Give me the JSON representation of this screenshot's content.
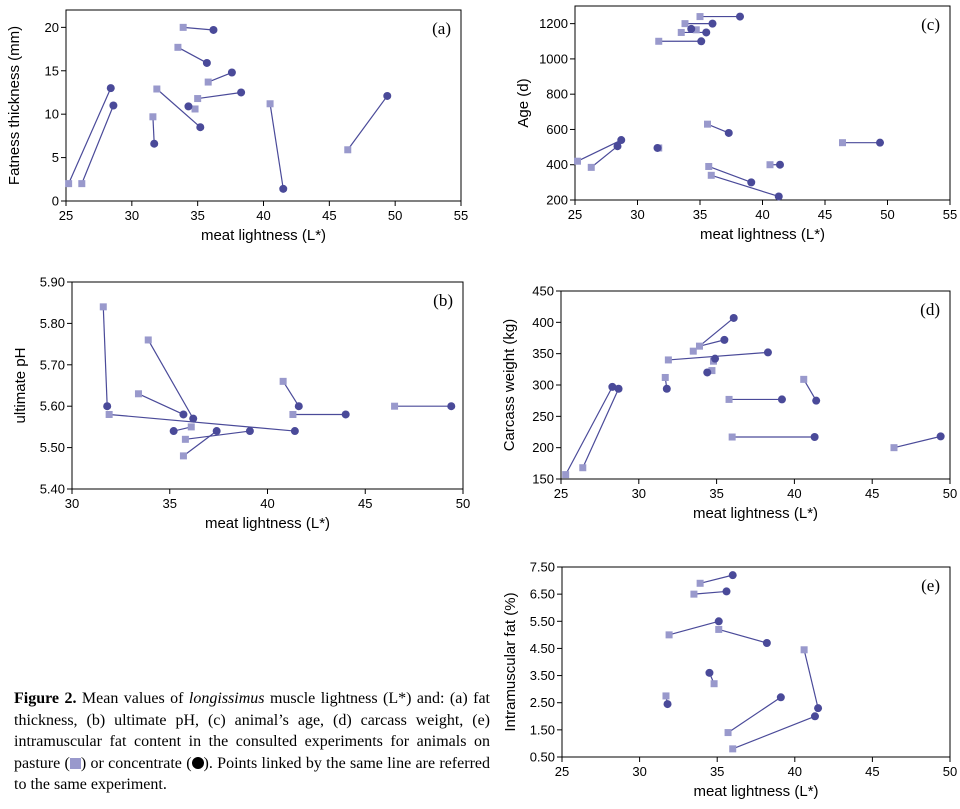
{
  "colors": {
    "pasture": "#9999cc",
    "concentrate": "#4a4a99",
    "line_pasture": "#8888c4",
    "line_concentrate": "#4a4a99"
  },
  "chart_data": [
    {
      "id": "a",
      "type": "scatter",
      "panel_label": "(a)",
      "xlabel": "meat lightness (L*)",
      "ylabel": "Fatness thickness (mm)",
      "xlim": [
        25,
        55
      ],
      "ylim": [
        0,
        22
      ],
      "xticks": [
        25,
        30,
        35,
        40,
        45,
        50,
        55
      ],
      "yticks": [
        0,
        5,
        10,
        15,
        20
      ],
      "tick_labels_x": [
        "25",
        "30",
        "35",
        "40",
        "45",
        "50",
        "55"
      ],
      "tick_labels_y": [
        "0",
        "5",
        "10",
        "15",
        "20"
      ],
      "pairs": [
        {
          "pasture": [
            25.2,
            2.0
          ],
          "concentrate": [
            28.4,
            13.0
          ]
        },
        {
          "pasture": [
            26.2,
            2.0
          ],
          "concentrate": [
            28.6,
            11.0
          ]
        },
        {
          "pasture": [
            31.6,
            9.7
          ],
          "concentrate": [
            31.7,
            6.6
          ]
        },
        {
          "pasture": [
            33.9,
            20.0
          ],
          "concentrate": [
            36.2,
            19.7
          ]
        },
        {
          "pasture": [
            33.5,
            17.7
          ],
          "concentrate": [
            35.7,
            15.9
          ]
        },
        {
          "pasture": [
            35.8,
            13.7
          ],
          "concentrate": [
            37.6,
            14.8
          ]
        },
        {
          "pasture": [
            35.0,
            11.8
          ],
          "concentrate": [
            38.3,
            12.5
          ]
        },
        {
          "pasture": [
            34.8,
            10.6
          ],
          "concentrate": [
            34.3,
            10.9
          ]
        },
        {
          "pasture": [
            31.9,
            12.9
          ],
          "concentrate": [
            35.2,
            8.5
          ]
        },
        {
          "pasture": [
            40.5,
            11.2
          ],
          "concentrate": [
            41.5,
            1.4
          ]
        },
        {
          "pasture": [
            46.4,
            5.9
          ],
          "concentrate": [
            49.4,
            12.1
          ]
        }
      ]
    },
    {
      "id": "b",
      "type": "scatter",
      "panel_label": "(b)",
      "xlabel": "meat lightness (L*)",
      "ylabel": "ultimate pH",
      "xlim": [
        30,
        50
      ],
      "ylim": [
        5.4,
        5.9
      ],
      "xticks": [
        30,
        35,
        40,
        45,
        50
      ],
      "yticks": [
        5.4,
        5.5,
        5.6,
        5.7,
        5.8,
        5.9
      ],
      "tick_labels_x": [
        "30",
        "35",
        "40",
        "45",
        "50"
      ],
      "tick_labels_y": [
        "5.40",
        "5.50",
        "5.60",
        "5.70",
        "5.80",
        "5.90"
      ],
      "pairs": [
        {
          "pasture": [
            31.6,
            5.84
          ],
          "concentrate": [
            31.8,
            5.6
          ]
        },
        {
          "pasture": [
            31.9,
            5.58
          ],
          "concentrate": [
            41.4,
            5.54
          ]
        },
        {
          "pasture": [
            33.9,
            5.76
          ],
          "concentrate": [
            36.2,
            5.57
          ]
        },
        {
          "pasture": [
            33.4,
            5.63
          ],
          "concentrate": [
            35.7,
            5.58
          ]
        },
        {
          "pasture": [
            36.1,
            5.55
          ],
          "concentrate": [
            35.2,
            5.54
          ]
        },
        {
          "pasture": [
            35.8,
            5.52
          ],
          "concentrate": [
            39.1,
            5.54
          ]
        },
        {
          "pasture": [
            35.7,
            5.48
          ],
          "concentrate": [
            37.4,
            5.54
          ]
        },
        {
          "pasture": [
            40.8,
            5.66
          ],
          "concentrate": [
            41.6,
            5.6
          ]
        },
        {
          "pasture": [
            41.3,
            5.58
          ],
          "concentrate": [
            44.0,
            5.58
          ]
        },
        {
          "pasture": [
            46.5,
            5.6
          ],
          "concentrate": [
            49.4,
            5.6
          ]
        }
      ]
    },
    {
      "id": "c",
      "type": "scatter",
      "panel_label": "(c)",
      "xlabel": "meat lightness (L*)",
      "ylabel": "Age (d)",
      "xlim": [
        25,
        55
      ],
      "ylim": [
        200,
        1300
      ],
      "xticks": [
        25,
        30,
        35,
        40,
        45,
        50,
        55
      ],
      "yticks": [
        200,
        400,
        600,
        800,
        1000,
        1200
      ],
      "tick_labels_x": [
        "25",
        "30",
        "35",
        "40",
        "45",
        "50",
        "55"
      ],
      "tick_labels_y": [
        "200",
        "400",
        "600",
        "800",
        "1000",
        "1200"
      ],
      "pairs": [
        {
          "pasture": [
            25.2,
            420
          ],
          "concentrate": [
            28.7,
            540
          ]
        },
        {
          "pasture": [
            26.3,
            385
          ],
          "concentrate": [
            28.4,
            505
          ]
        },
        {
          "pasture": [
            31.7,
            495
          ],
          "concentrate": [
            31.6,
            495
          ]
        },
        {
          "pasture": [
            35.0,
            1240
          ],
          "concentrate": [
            38.2,
            1240
          ]
        },
        {
          "pasture": [
            33.8,
            1200
          ],
          "concentrate": [
            36.0,
            1200
          ]
        },
        {
          "pasture": [
            33.5,
            1150
          ],
          "concentrate": [
            35.5,
            1150
          ]
        },
        {
          "pasture": [
            34.7,
            1165
          ],
          "concentrate": [
            34.3,
            1170
          ]
        },
        {
          "pasture": [
            31.7,
            1100
          ],
          "concentrate": [
            35.1,
            1100
          ]
        },
        {
          "pasture": [
            35.6,
            630
          ],
          "concentrate": [
            37.3,
            580
          ]
        },
        {
          "pasture": [
            35.7,
            390
          ],
          "concentrate": [
            39.1,
            300
          ]
        },
        {
          "pasture": [
            35.9,
            340
          ],
          "concentrate": [
            41.3,
            220
          ]
        },
        {
          "pasture": [
            40.6,
            400
          ],
          "concentrate": [
            41.4,
            400
          ]
        },
        {
          "pasture": [
            46.4,
            525
          ],
          "concentrate": [
            49.4,
            525
          ]
        }
      ]
    },
    {
      "id": "d",
      "type": "scatter",
      "panel_label": "(d)",
      "xlabel": "meat lightness (L*)",
      "ylabel": "Carcass weight (kg)",
      "xlim": [
        25,
        50
      ],
      "ylim": [
        150,
        450
      ],
      "xticks": [
        25,
        30,
        35,
        40,
        45,
        50
      ],
      "yticks": [
        150,
        200,
        250,
        300,
        350,
        400,
        450
      ],
      "tick_labels_x": [
        "25",
        "30",
        "35",
        "40",
        "45",
        "50"
      ],
      "tick_labels_y": [
        "150",
        "200",
        "250",
        "300",
        "350",
        "400",
        "450"
      ],
      "pairs": [
        {
          "pasture": [
            25.3,
            157
          ],
          "concentrate": [
            28.3,
            297
          ]
        },
        {
          "pasture": [
            26.4,
            168
          ],
          "concentrate": [
            28.7,
            294
          ]
        },
        {
          "pasture": [
            31.7,
            312
          ],
          "concentrate": [
            31.8,
            294
          ]
        },
        {
          "pasture": [
            31.9,
            340
          ],
          "concentrate": [
            38.3,
            352
          ]
        },
        {
          "pasture": [
            33.9,
            362
          ],
          "concentrate": [
            35.5,
            372
          ]
        },
        {
          "pasture": [
            33.5,
            354
          ],
          "concentrate": [
            36.1,
            407
          ]
        },
        {
          "pasture": [
            34.8,
            338
          ],
          "concentrate": [
            34.9,
            342
          ]
        },
        {
          "pasture": [
            34.7,
            323
          ],
          "concentrate": [
            34.4,
            320
          ]
        },
        {
          "pasture": [
            35.8,
            277
          ],
          "concentrate": [
            39.2,
            277
          ]
        },
        {
          "pasture": [
            36.0,
            217
          ],
          "concentrate": [
            41.3,
            217
          ]
        },
        {
          "pasture": [
            40.6,
            309
          ],
          "concentrate": [
            41.4,
            275
          ]
        },
        {
          "pasture": [
            46.4,
            200
          ],
          "concentrate": [
            49.4,
            218
          ]
        }
      ]
    },
    {
      "id": "e",
      "type": "scatter",
      "panel_label": "(e)",
      "xlabel": "meat lightness (L*)",
      "ylabel": "Intramuscular fat (%)",
      "xlim": [
        25,
        50
      ],
      "ylim": [
        0.5,
        7.5
      ],
      "xticks": [
        25,
        30,
        35,
        40,
        45,
        50
      ],
      "yticks": [
        0.5,
        1.5,
        2.5,
        3.5,
        4.5,
        5.5,
        6.5,
        7.5
      ],
      "tick_labels_x": [
        "25",
        "30",
        "35",
        "40",
        "45",
        "50"
      ],
      "tick_labels_y": [
        "0.50",
        "1.50",
        "2.50",
        "3.50",
        "4.50",
        "5.50",
        "6.50",
        "7.50"
      ],
      "pairs": [
        {
          "pasture": [
            33.9,
            6.9
          ],
          "concentrate": [
            36.0,
            7.2
          ]
        },
        {
          "pasture": [
            33.5,
            6.5
          ],
          "concentrate": [
            35.6,
            6.6
          ]
        },
        {
          "pasture": [
            31.9,
            5.0
          ],
          "concentrate": [
            35.1,
            5.5
          ]
        },
        {
          "pasture": [
            35.1,
            5.2
          ],
          "concentrate": [
            38.2,
            4.7
          ]
        },
        {
          "pasture": [
            34.8,
            3.2
          ],
          "concentrate": [
            34.5,
            3.6
          ]
        },
        {
          "pasture": [
            31.7,
            2.75
          ],
          "concentrate": [
            31.8,
            2.45
          ]
        },
        {
          "pasture": [
            35.7,
            1.4
          ],
          "concentrate": [
            39.1,
            2.7
          ]
        },
        {
          "pasture": [
            40.6,
            4.45
          ],
          "concentrate": [
            41.5,
            2.3
          ]
        },
        {
          "pasture": [
            36.0,
            0.8
          ],
          "concentrate": [
            41.3,
            2.0
          ]
        }
      ]
    }
  ],
  "caption": {
    "figure_label": "Figure 2.",
    "text_before_italic": " Mean values of ",
    "italic_word": "longissimus",
    "text_after_italic": " muscle lightness (L*) and: (a) fat thickness, (b) ultimate pH, (c) animal’s age, (d) carcass weight, (e) intramuscular fat content in the consulted experiments for animals on pasture (",
    "text_between_symbols": ") or concentrate (",
    "text_end": "). Points linked by the same line are referred to the same experiment."
  }
}
